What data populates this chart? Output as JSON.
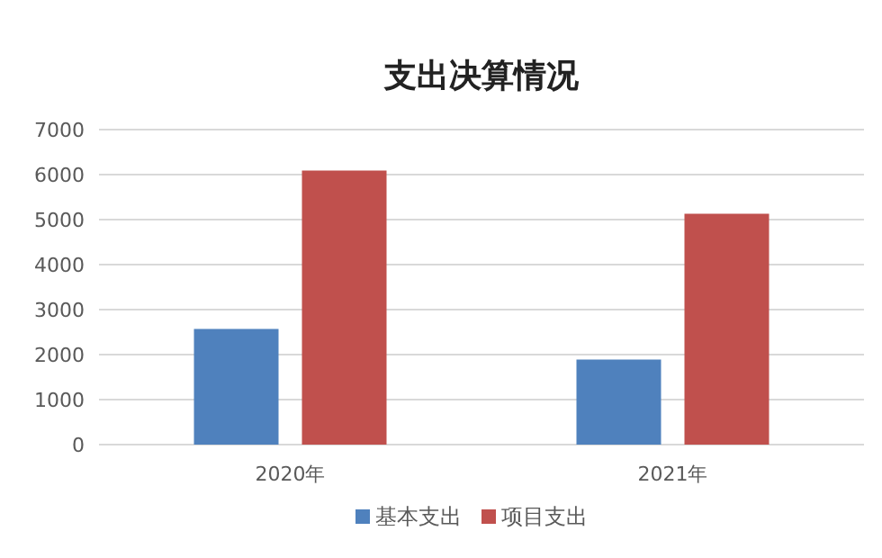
{
  "chart_data": {
    "type": "bar",
    "title": "支出决算情况",
    "categories": [
      "2020年",
      "2021年"
    ],
    "series": [
      {
        "name": "基本支出",
        "color": "#4f81bd",
        "values": [
          2570,
          1890
        ]
      },
      {
        "name": "项目支出",
        "color": "#c0504d",
        "values": [
          6090,
          5130
        ]
      }
    ],
    "ylim": [
      0,
      7000
    ],
    "yticks": [
      0,
      1000,
      2000,
      3000,
      4000,
      5000,
      6000,
      7000
    ],
    "grid": "y",
    "legend": "bottom"
  }
}
